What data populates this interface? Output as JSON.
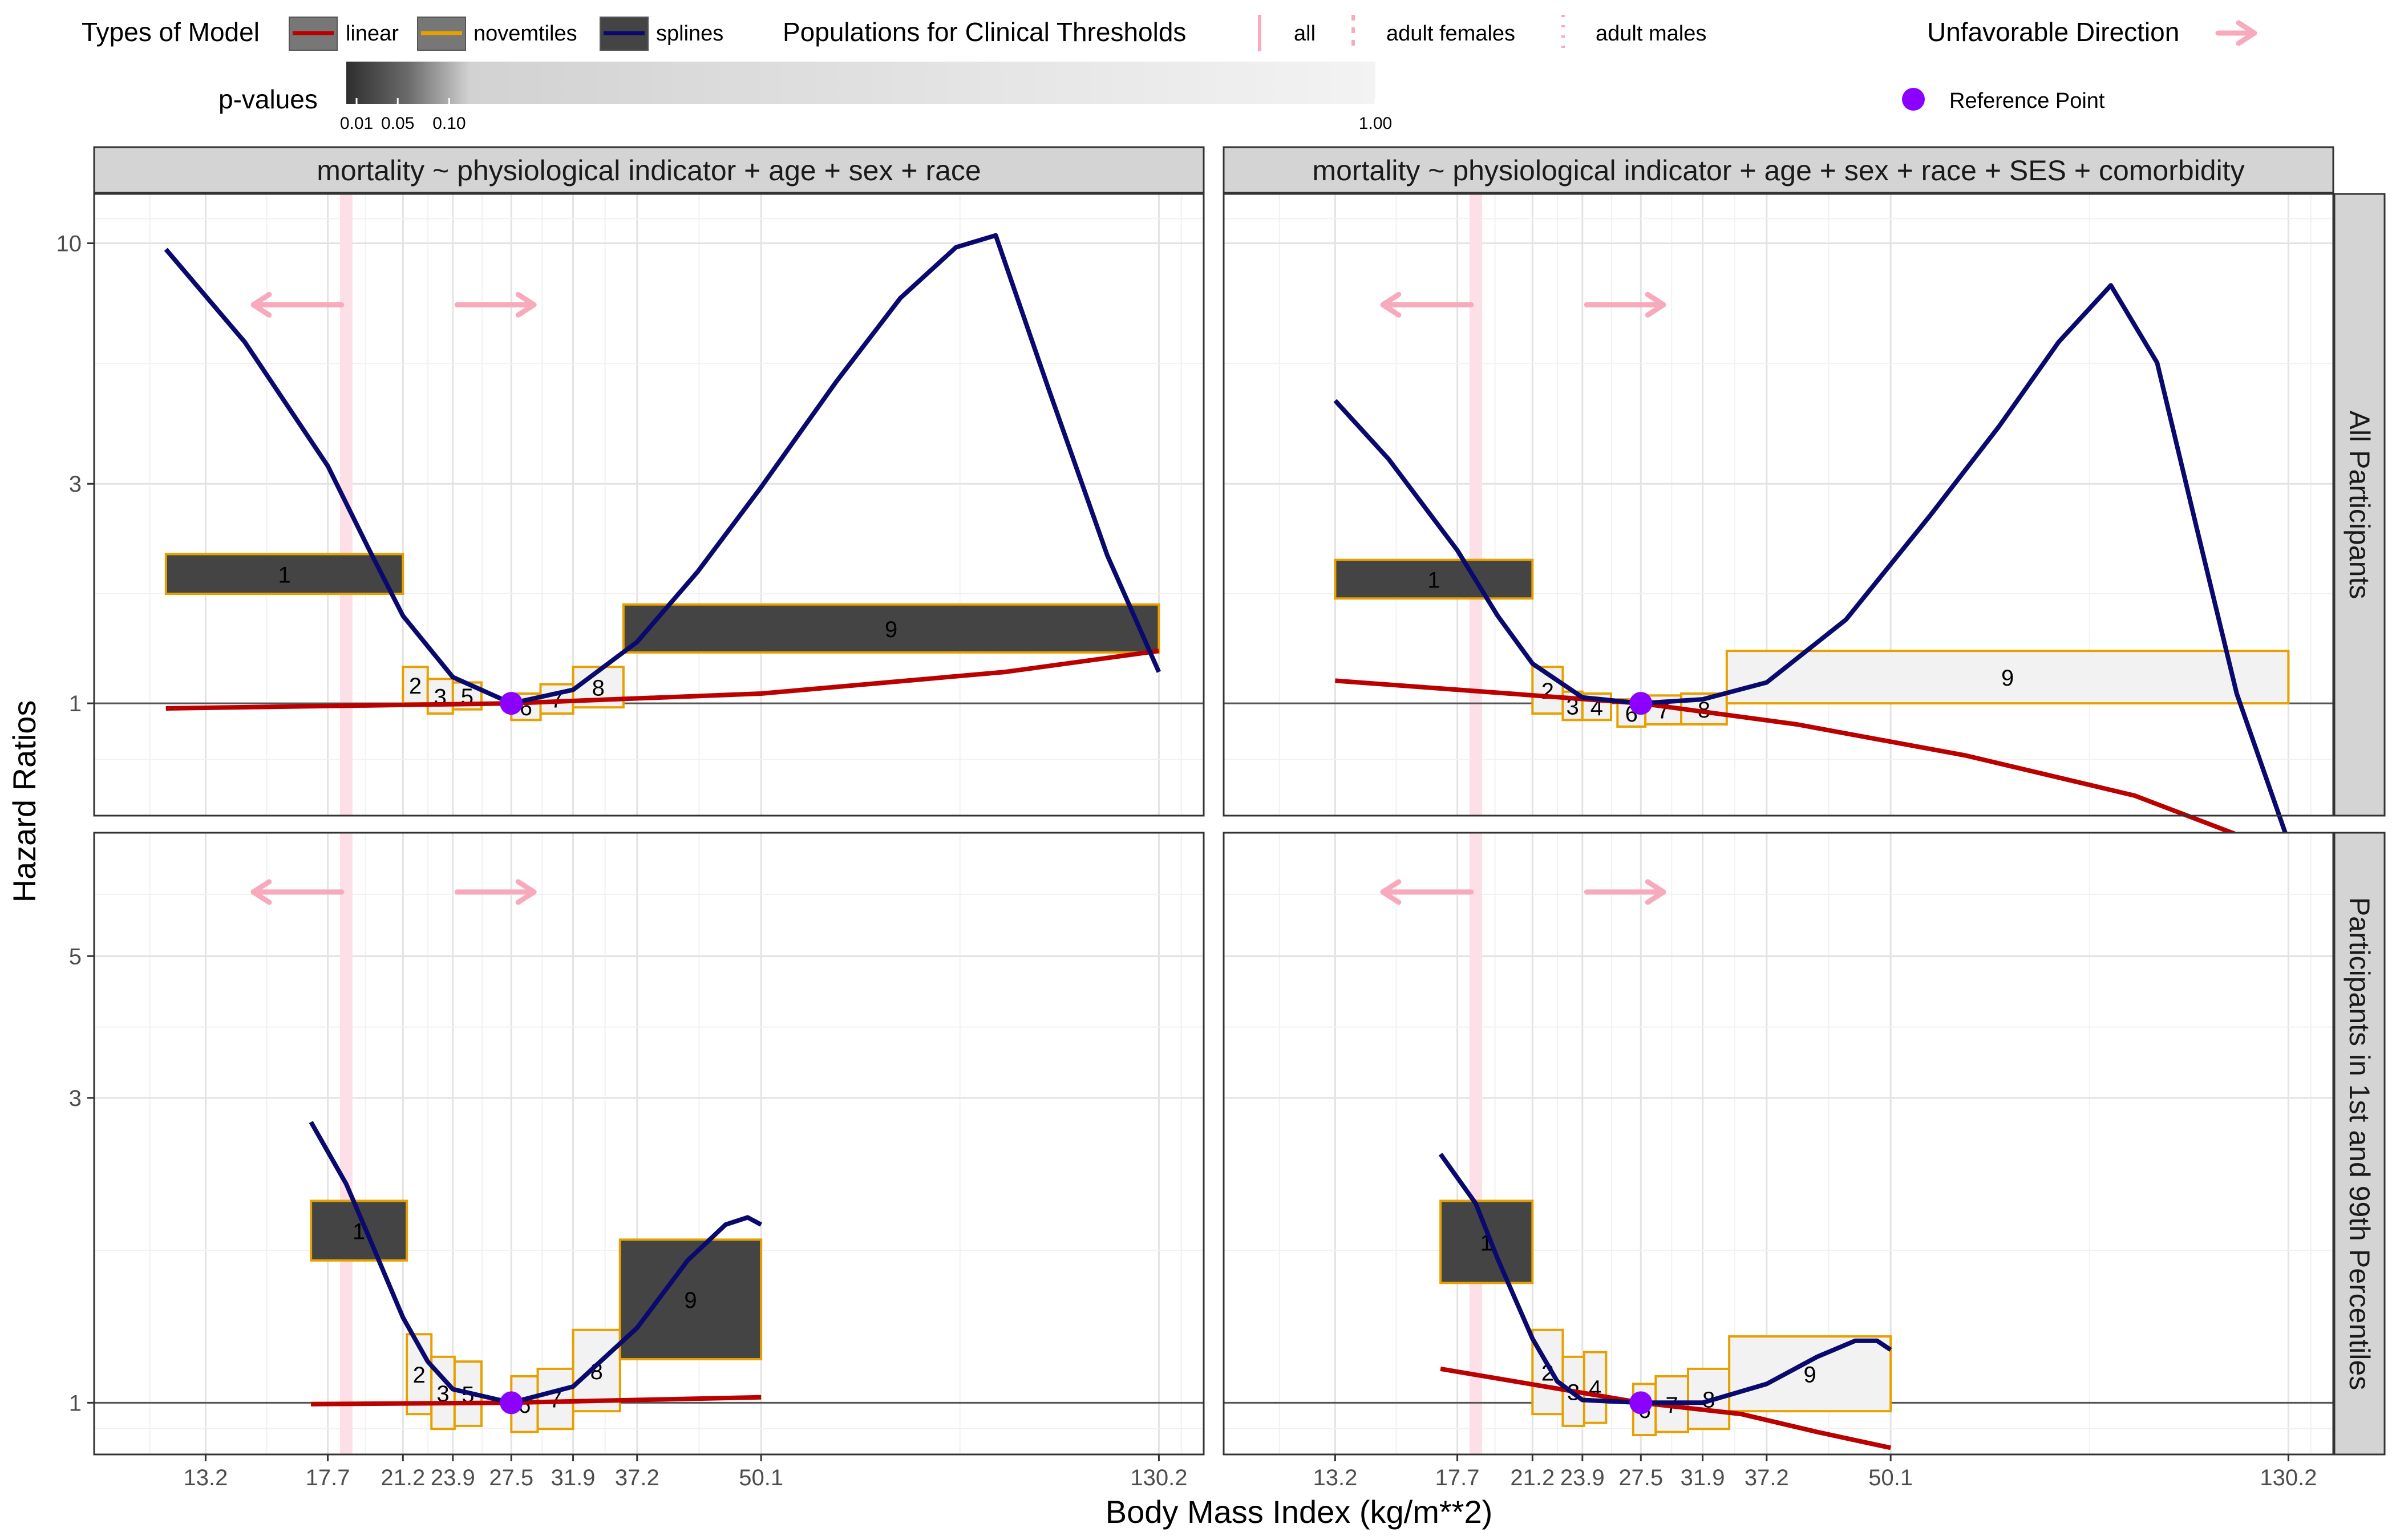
{
  "legend": {
    "model_title": "Types of Model",
    "model_items": [
      {
        "label": "linear",
        "color": "#bb0000",
        "fill": "#777777"
      },
      {
        "label": "novemtiles",
        "color": "#e6a000",
        "fill": "#777777"
      },
      {
        "label": "splines",
        "color": "#0a0a6e",
        "fill": "#444444"
      }
    ],
    "populations_title": "Populations for Clinical Thresholds",
    "population_items": [
      {
        "label": "all",
        "style": "solid"
      },
      {
        "label": "adult females",
        "style": "dashed"
      },
      {
        "label": "adult males",
        "style": "dotted"
      }
    ],
    "unfavorable_label": "Unfavorable Direction",
    "reference_label": "Reference Point",
    "pvalue_title": "p-values",
    "pvalue_ticks": [
      {
        "label": "0.01",
        "v": 0.01
      },
      {
        "label": "0.05",
        "v": 0.05
      },
      {
        "label": "0.10",
        "v": 0.1
      },
      {
        "label": "1.00",
        "v": 1.0
      }
    ]
  },
  "colors": {
    "linear": "#bb0000",
    "splines": "#0a0a6e",
    "novemtile_border": "#e6a000",
    "significant_fill": "#444444",
    "nonsignificant_fill": "#f2f2f2",
    "reference_point": "#8b00ff",
    "unfavorable_arrow": "#f8aabd",
    "threshold_band": "#fde0e7",
    "strip_fill": "#d4d4d4"
  },
  "chart_data": {
    "type": "line",
    "xlabel": "Body Mass Index (kg/m**2)",
    "ylabel": "Hazard Ratios",
    "x_scale": "log",
    "y_scale": "log",
    "x_ticks": [
      13.2,
      17.7,
      21.2,
      23.9,
      27.5,
      31.9,
      37.2,
      50.1,
      130.2
    ],
    "x_tick_labels": [
      "13.2",
      "17.7",
      "21.2",
      "23.9",
      "27.5",
      "31.9",
      "37.2",
      "50.1",
      "130.2"
    ],
    "threshold_all": 18.5,
    "reference_point": {
      "x": 27.5,
      "hr": 1
    },
    "column_titles": [
      "mortality ~ physiological indicator + age + sex + race",
      "mortality ~ physiological indicator + age + sex + race + SES + comorbidity"
    ],
    "row_titles": [
      "All Participants",
      "Participants in 1st and 99th Percentiles"
    ],
    "rows": [
      {
        "ylim": [
          0.57,
          12.8
        ],
        "y_ticks": [
          1,
          3,
          10
        ],
        "x_domain": [
          10.1,
          145
        ],
        "arrow_hr": 7.35
      },
      {
        "ylim": [
          0.83,
          7.8
        ],
        "y_ticks": [
          1,
          3,
          5
        ],
        "x_domain": [
          10.1,
          145
        ],
        "arrow_hr": 6.3
      }
    ],
    "panels": [
      {
        "row": 0,
        "col": 0,
        "linear": {
          "x": [
            12.0,
            27.5,
            50.1,
            90.0,
            130.2
          ],
          "hr": [
            0.975,
            1.0,
            1.05,
            1.17,
            1.3
          ]
        },
        "splines": {
          "x": [
            12.0,
            14.5,
            17.7,
            19.5,
            21.2,
            23.9,
            27.5,
            31.9,
            37.2,
            43.0,
            50.1,
            60.0,
            70.0,
            80.0,
            88.0,
            100.0,
            115.0,
            130.2
          ],
          "hr": [
            9.7,
            6.1,
            3.28,
            2.18,
            1.55,
            1.14,
            1.0,
            1.07,
            1.36,
            1.93,
            2.95,
            5.0,
            7.6,
            9.8,
            10.4,
            4.8,
            2.1,
            1.17
          ]
        },
        "novemtiles": [
          {
            "n": "1",
            "x0": 12.0,
            "x1": 21.2,
            "lo": 1.73,
            "hi": 2.11,
            "sig": true
          },
          {
            "n": "2",
            "x0": 21.2,
            "x1": 22.5,
            "lo": 1.0,
            "hi": 1.2,
            "sig": false
          },
          {
            "n": "3",
            "x0": 22.5,
            "x1": 23.9,
            "lo": 0.95,
            "hi": 1.13,
            "sig": false
          },
          {
            "n": "5",
            "x0": 23.9,
            "x1": 25.6,
            "lo": 0.97,
            "hi": 1.11,
            "sig": false
          },
          {
            "n": "6",
            "x0": 27.5,
            "x1": 29.5,
            "lo": 0.92,
            "hi": 1.05,
            "sig": false
          },
          {
            "n": "7",
            "x0": 29.5,
            "x1": 31.9,
            "lo": 0.95,
            "hi": 1.1,
            "sig": false
          },
          {
            "n": "8",
            "x0": 31.9,
            "x1": 36.0,
            "lo": 0.98,
            "hi": 1.2,
            "sig": false
          },
          {
            "n": "9",
            "x0": 36.0,
            "x1": 130.2,
            "lo": 1.29,
            "hi": 1.64,
            "sig": true
          }
        ]
      },
      {
        "row": 0,
        "col": 1,
        "linear": {
          "x": [
            13.2,
            27.5,
            40.0,
            60.0,
            90.0,
            130.2
          ],
          "hr": [
            1.12,
            1.0,
            0.9,
            0.77,
            0.63,
            0.47
          ]
        },
        "splines": {
          "x": [
            13.2,
            15.0,
            17.7,
            19.5,
            21.2,
            23.9,
            27.5,
            31.9,
            37.2,
            45.0,
            55.0,
            65.0,
            75.0,
            85.0,
            95.0,
            105.0,
            115.0,
            130.2
          ],
          "hr": [
            4.55,
            3.4,
            2.15,
            1.55,
            1.22,
            1.03,
            1.0,
            1.02,
            1.11,
            1.52,
            2.55,
            4.0,
            6.1,
            8.1,
            5.5,
            2.3,
            1.05,
            0.5
          ]
        },
        "novemtiles": [
          {
            "n": "1",
            "x0": 13.2,
            "x1": 21.2,
            "lo": 1.69,
            "hi": 2.05,
            "sig": true
          },
          {
            "n": "2",
            "x0": 21.2,
            "x1": 22.8,
            "lo": 0.95,
            "hi": 1.2,
            "sig": false
          },
          {
            "n": "3",
            "x0": 22.8,
            "x1": 23.9,
            "lo": 0.92,
            "hi": 1.06,
            "sig": false
          },
          {
            "n": "4",
            "x0": 23.9,
            "x1": 25.6,
            "lo": 0.92,
            "hi": 1.05,
            "sig": false
          },
          {
            "n": "6",
            "x0": 26.0,
            "x1": 27.8,
            "lo": 0.89,
            "hi": 1.02,
            "sig": false
          },
          {
            "n": "7",
            "x0": 27.8,
            "x1": 30.3,
            "lo": 0.9,
            "hi": 1.04,
            "sig": false
          },
          {
            "n": "8",
            "x0": 30.3,
            "x1": 33.8,
            "lo": 0.9,
            "hi": 1.05,
            "sig": false
          },
          {
            "n": "9",
            "x0": 33.8,
            "x1": 130.2,
            "lo": 1.0,
            "hi": 1.3,
            "sig": false
          }
        ]
      },
      {
        "row": 1,
        "col": 0,
        "linear": {
          "x": [
            17.0,
            27.5,
            50.1
          ],
          "hr": [
            0.995,
            1.0,
            1.02
          ]
        },
        "splines": {
          "x": [
            17.0,
            18.5,
            19.5,
            21.2,
            22.5,
            23.9,
            27.5,
            31.9,
            37.2,
            42.0,
            46.0,
            48.5,
            50.1
          ],
          "hr": [
            2.75,
            2.2,
            1.83,
            1.36,
            1.16,
            1.05,
            1.0,
            1.06,
            1.31,
            1.67,
            1.9,
            1.95,
            1.9
          ]
        },
        "novemtiles": [
          {
            "n": "1",
            "x0": 17.0,
            "x1": 21.4,
            "lo": 1.67,
            "hi": 2.07,
            "sig": true
          },
          {
            "n": "2",
            "x0": 21.4,
            "x1": 22.7,
            "lo": 0.96,
            "hi": 1.28,
            "sig": false
          },
          {
            "n": "3",
            "x0": 22.7,
            "x1": 24.0,
            "lo": 0.91,
            "hi": 1.18,
            "sig": false
          },
          {
            "n": "5",
            "x0": 24.0,
            "x1": 25.6,
            "lo": 0.92,
            "hi": 1.16,
            "sig": false
          },
          {
            "n": "6",
            "x0": 27.5,
            "x1": 29.3,
            "lo": 0.9,
            "hi": 1.1,
            "sig": false
          },
          {
            "n": "7",
            "x0": 29.3,
            "x1": 31.9,
            "lo": 0.91,
            "hi": 1.13,
            "sig": false
          },
          {
            "n": "8",
            "x0": 31.9,
            "x1": 35.7,
            "lo": 0.97,
            "hi": 1.3,
            "sig": false
          },
          {
            "n": "9",
            "x0": 35.7,
            "x1": 50.1,
            "lo": 1.17,
            "hi": 1.8,
            "sig": true
          }
        ]
      },
      {
        "row": 1,
        "col": 1,
        "linear": {
          "x": [
            17.0,
            27.5,
            35.0,
            42.0,
            50.1
          ],
          "hr": [
            1.13,
            1.0,
            0.96,
            0.9,
            0.85
          ]
        },
        "splines": {
          "x": [
            17.0,
            18.5,
            19.5,
            21.2,
            22.5,
            23.9,
            27.5,
            31.9,
            37.2,
            42.0,
            46.0,
            48.5,
            50.1
          ],
          "hr": [
            2.45,
            2.05,
            1.68,
            1.26,
            1.08,
            1.01,
            1.0,
            1.0,
            1.07,
            1.18,
            1.25,
            1.25,
            1.21
          ]
        },
        "novemtiles": [
          {
            "n": "1",
            "x0": 17.0,
            "x1": 21.2,
            "lo": 1.54,
            "hi": 2.07,
            "sig": true
          },
          {
            "n": "2",
            "x0": 21.2,
            "x1": 22.8,
            "lo": 0.96,
            "hi": 1.3,
            "sig": false
          },
          {
            "n": "3",
            "x0": 22.8,
            "x1": 24.0,
            "lo": 0.92,
            "hi": 1.18,
            "sig": false
          },
          {
            "n": "4",
            "x0": 24.0,
            "x1": 25.3,
            "lo": 0.93,
            "hi": 1.2,
            "sig": false
          },
          {
            "n": "6",
            "x0": 27.0,
            "x1": 28.5,
            "lo": 0.89,
            "hi": 1.07,
            "sig": false
          },
          {
            "n": "7",
            "x0": 28.5,
            "x1": 30.8,
            "lo": 0.9,
            "hi": 1.1,
            "sig": false
          },
          {
            "n": "8",
            "x0": 30.8,
            "x1": 34.0,
            "lo": 0.91,
            "hi": 1.13,
            "sig": false
          },
          {
            "n": "9",
            "x0": 34.0,
            "x1": 50.1,
            "lo": 0.97,
            "hi": 1.27,
            "sig": false
          }
        ]
      }
    ]
  }
}
